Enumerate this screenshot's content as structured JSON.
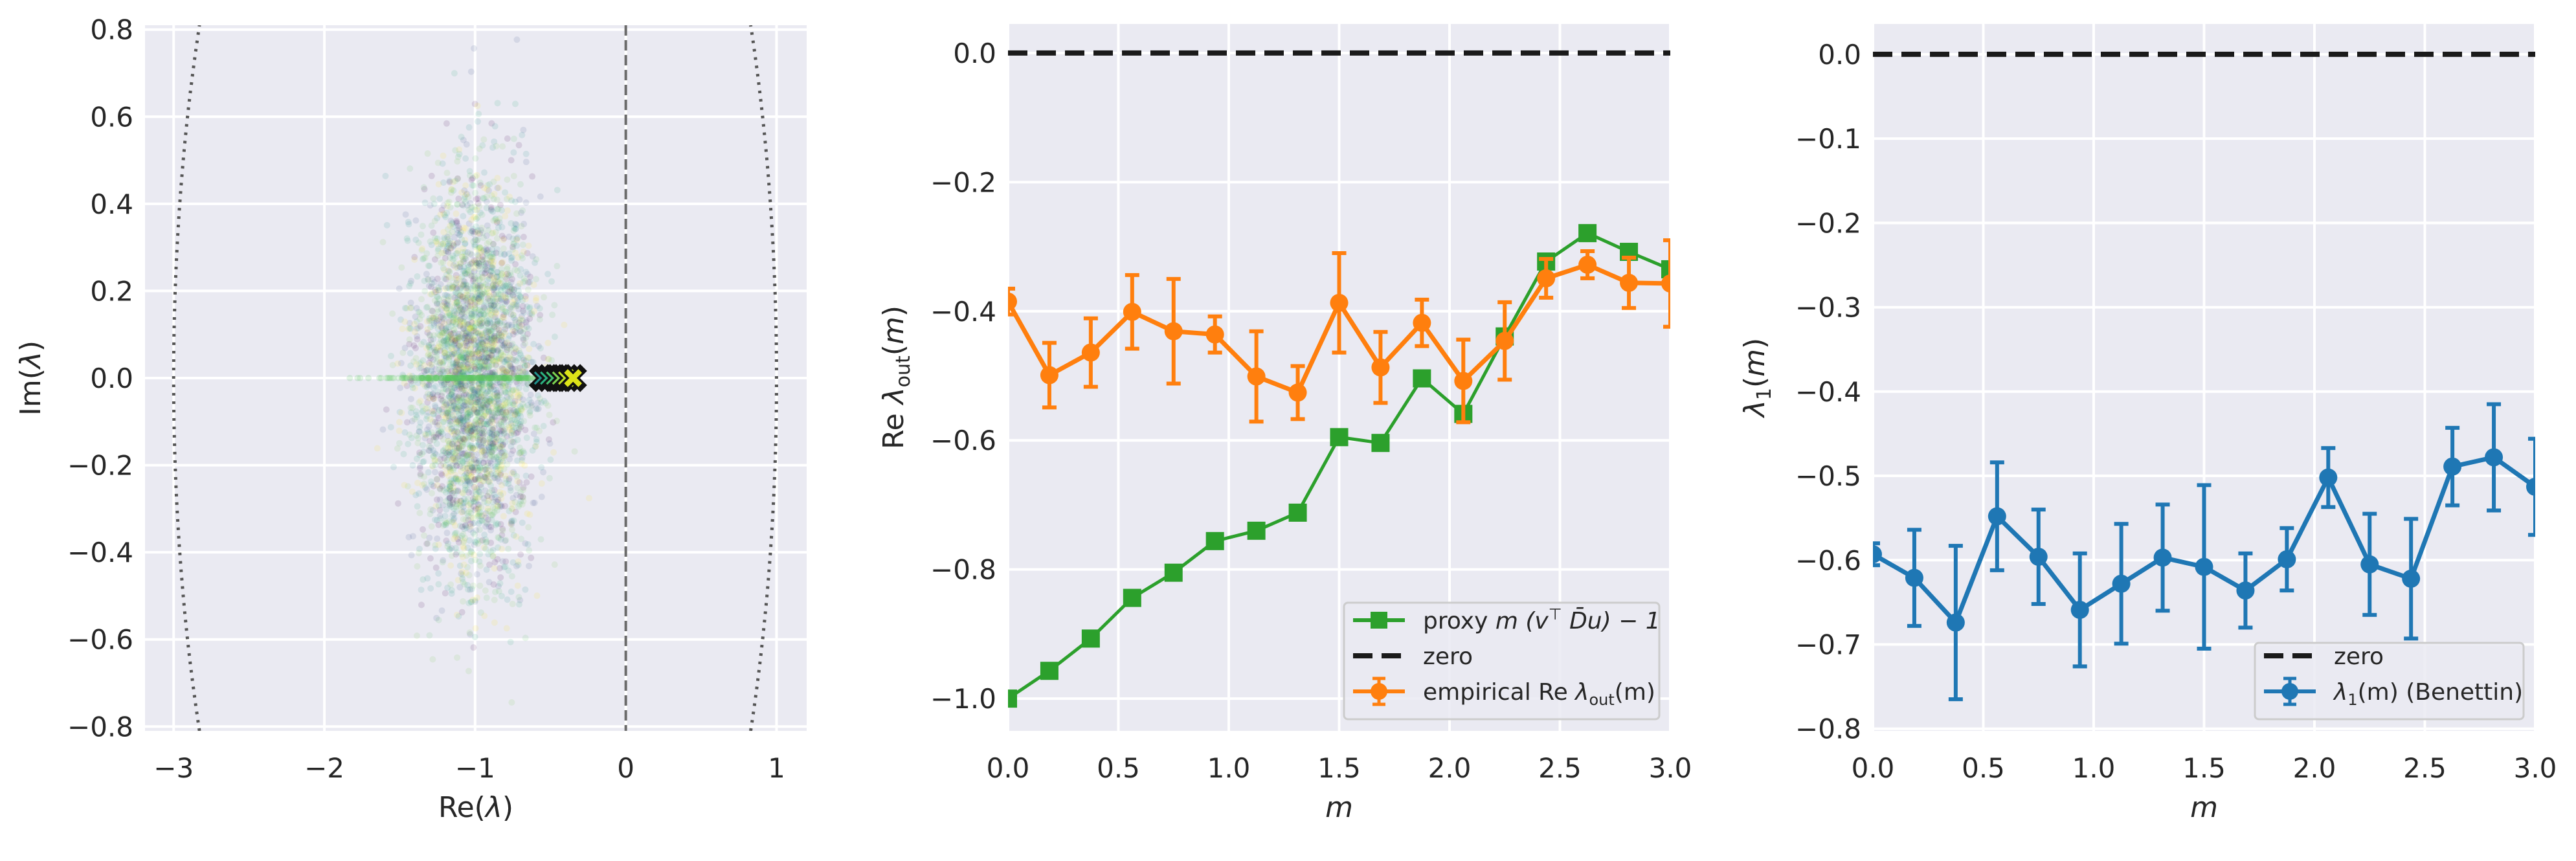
{
  "chart_data": [
    {
      "type": "scatter",
      "xlabel": {
        "main": "Re(",
        "sym": "λ",
        "tail": ")"
      },
      "ylabel": {
        "main": "Im(",
        "sym": "λ",
        "tail": ")"
      },
      "xlim": [
        -3.19,
        1.2
      ],
      "ylim": [
        -0.81,
        0.81
      ],
      "xticks": [
        -3,
        -2,
        -1,
        0,
        1
      ],
      "xtick_labels": [
        "−3",
        "−2",
        "−1",
        "0",
        "1"
      ],
      "yticks": [
        -0.8,
        -0.6,
        -0.4,
        -0.2,
        0.0,
        0.2,
        0.4,
        0.6,
        0.8
      ],
      "ytick_labels": [
        "−0.8",
        "−0.6",
        "−0.4",
        "−0.2",
        "0.0",
        "0.2",
        "0.4",
        "0.6",
        "0.8"
      ],
      "grid": true,
      "bulk_cloud": {
        "center": [
          -1.0,
          0.0
        ],
        "spread_re": 0.2,
        "spread_im": 0.22,
        "colormap": "viridis",
        "alpha": 0.12
      },
      "real_axis_eigenvalues_range": [
        -2.1,
        -0.55
      ],
      "outliers": {
        "marker": "x",
        "re": [
          -0.55,
          -0.51,
          -0.47,
          -0.43,
          -0.39,
          -0.35
        ],
        "im": 0,
        "colors": [
          "#21918c",
          "#2ab07f",
          "#44bf70",
          "#7ad151",
          "#bddf26",
          "#dde318"
        ]
      },
      "reference_circle": {
        "center": [
          -1,
          0
        ],
        "radius": 2,
        "style": "dotted",
        "color": "#555555"
      },
      "vline": {
        "x": 0,
        "style": "dashed",
        "color": "#6b6b6b"
      }
    },
    {
      "type": "line",
      "xlabel": "m",
      "ylabel": {
        "main": "Re ",
        "sym": "λ",
        "sub": "out",
        "tail": "(m)"
      },
      "xlim": [
        0,
        3
      ],
      "ylim": [
        -1.05,
        0.045
      ],
      "xticks": [
        0,
        0.5,
        1,
        1.5,
        2,
        2.5,
        3
      ],
      "xtick_labels": [
        "0.0",
        "0.5",
        "1.0",
        "1.5",
        "2.0",
        "2.5",
        "3.0"
      ],
      "yticks": [
        -1.0,
        -0.8,
        -0.6,
        -0.4,
        -0.2,
        0.0
      ],
      "ytick_labels": [
        "−1.0",
        "−0.8",
        "−0.6",
        "−0.4",
        "−0.2",
        "0.0"
      ],
      "grid": true,
      "legend_placement": "lower right",
      "x": [
        0,
        0.1875,
        0.375,
        0.5625,
        0.75,
        0.9375,
        1.125,
        1.3125,
        1.5,
        1.6875,
        1.875,
        2.0625,
        2.25,
        2.4375,
        2.625,
        2.8125,
        3.0
      ],
      "series": [
        {
          "name": "proxy m (v⊤D̄u) − 1",
          "legend": {
            "pre": "proxy ",
            "math": "m (v",
            "sup": "⊤",
            "math2": " D̄u) − 1"
          },
          "color": "#2ca02c",
          "marker": "square",
          "values": [
            -1.0,
            -0.957,
            -0.907,
            -0.844,
            -0.805,
            -0.756,
            -0.74,
            -0.712,
            -0.595,
            -0.604,
            -0.504,
            -0.559,
            -0.439,
            -0.323,
            -0.279,
            -0.308,
            -0.335
          ]
        },
        {
          "name": "zero",
          "legend": {
            "pre": "zero"
          },
          "color": "#1a1a1a",
          "style": "dashed",
          "y": 0
        },
        {
          "name": "empirical Re λout(m)",
          "legend": {
            "pre": "empirical Re ",
            "math": "λ",
            "sub": "out",
            "math2": "(m)"
          },
          "color": "#ff7f0e",
          "marker": "circle",
          "values": [
            -0.385,
            -0.499,
            -0.464,
            -0.401,
            -0.431,
            -0.436,
            -0.501,
            -0.526,
            -0.387,
            -0.487,
            -0.418,
            -0.508,
            -0.446,
            -0.349,
            -0.328,
            -0.356,
            -0.357
          ],
          "errors": [
            0.02,
            0.05,
            0.053,
            0.057,
            0.081,
            0.028,
            0.07,
            0.041,
            0.077,
            0.055,
            0.036,
            0.064,
            0.06,
            0.03,
            0.021,
            0.039,
            0.067
          ]
        }
      ]
    },
    {
      "type": "line",
      "xlabel": "m",
      "ylabel": {
        "main": "",
        "sym": "λ",
        "sub": "1",
        "tail": "(m)"
      },
      "xlim": [
        0,
        3
      ],
      "ylim": [
        -0.8025,
        0.036
      ],
      "xticks": [
        0,
        0.5,
        1,
        1.5,
        2,
        2.5,
        3
      ],
      "xtick_labels": [
        "0.0",
        "0.5",
        "1.0",
        "1.5",
        "2.0",
        "2.5",
        "3.0"
      ],
      "yticks": [
        -0.8,
        -0.7,
        -0.6,
        -0.5,
        -0.4,
        -0.3,
        -0.2,
        -0.1,
        0.0
      ],
      "ytick_labels": [
        "−0.8",
        "−0.7",
        "−0.6",
        "−0.5",
        "−0.4",
        "−0.3",
        "−0.2",
        "−0.1",
        "0.0"
      ],
      "grid": true,
      "legend_placement": "lower right",
      "x": [
        0,
        0.1875,
        0.375,
        0.5625,
        0.75,
        0.9375,
        1.125,
        1.3125,
        1.5,
        1.6875,
        1.875,
        2.0625,
        2.25,
        2.4375,
        2.625,
        2.8125,
        3.0
      ],
      "series": [
        {
          "name": "zero",
          "legend": {
            "pre": "zero"
          },
          "color": "#1a1a1a",
          "style": "dashed",
          "y": 0
        },
        {
          "name": "λ1(m) (Benettin)",
          "legend": {
            "pre": "",
            "math": "λ",
            "sub": "1",
            "math2": "(m) (Benettin)"
          },
          "color": "#1f77b4",
          "marker": "circle",
          "values": [
            -0.593,
            -0.621,
            -0.674,
            -0.548,
            -0.596,
            -0.659,
            -0.628,
            -0.597,
            -0.608,
            -0.636,
            -0.599,
            -0.502,
            -0.605,
            -0.622,
            -0.489,
            -0.478,
            -0.513
          ],
          "errors": [
            0.013,
            0.057,
            0.091,
            0.064,
            0.056,
            0.067,
            0.071,
            0.063,
            0.097,
            0.044,
            0.037,
            0.035,
            0.06,
            0.071,
            0.046,
            0.063,
            0.057
          ]
        }
      ]
    }
  ]
}
